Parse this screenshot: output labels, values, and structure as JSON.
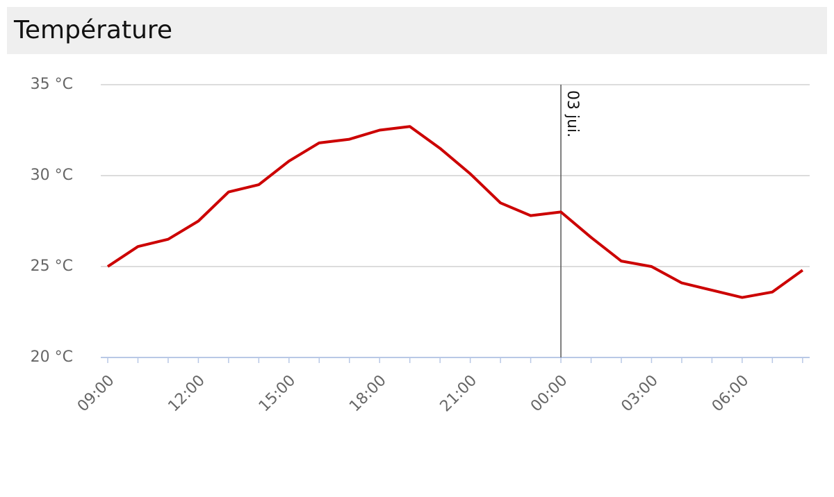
{
  "chart_data": {
    "type": "line",
    "title": "Température",
    "categories": [
      "09:00",
      null,
      null,
      "12:00",
      null,
      null,
      "15:00",
      null,
      null,
      "18:00",
      null,
      null,
      "21:00",
      null,
      null,
      "00:00",
      null,
      null,
      "03:00",
      null,
      null,
      "06:00",
      null,
      null
    ],
    "series": [
      {
        "color": "#cc0000",
        "values": [
          25.0,
          26.1,
          26.5,
          27.5,
          29.1,
          29.5,
          30.8,
          31.8,
          32.0,
          32.5,
          32.7,
          31.5,
          30.1,
          28.5,
          27.8,
          28.0,
          26.6,
          25.3,
          25.0,
          24.1,
          23.7,
          23.3,
          23.6,
          24.8
        ]
      }
    ],
    "ylim": [
      20,
      35
    ],
    "yticks": [
      {
        "value": 20,
        "label": "20 °C"
      },
      {
        "value": 25,
        "label": "25 °C"
      },
      {
        "value": 30,
        "label": "30 °C"
      },
      {
        "value": 35,
        "label": "35 °C"
      }
    ],
    "grid": true,
    "annotations": [
      {
        "text": "03 jui.",
        "x": "00:00"
      }
    ]
  }
}
